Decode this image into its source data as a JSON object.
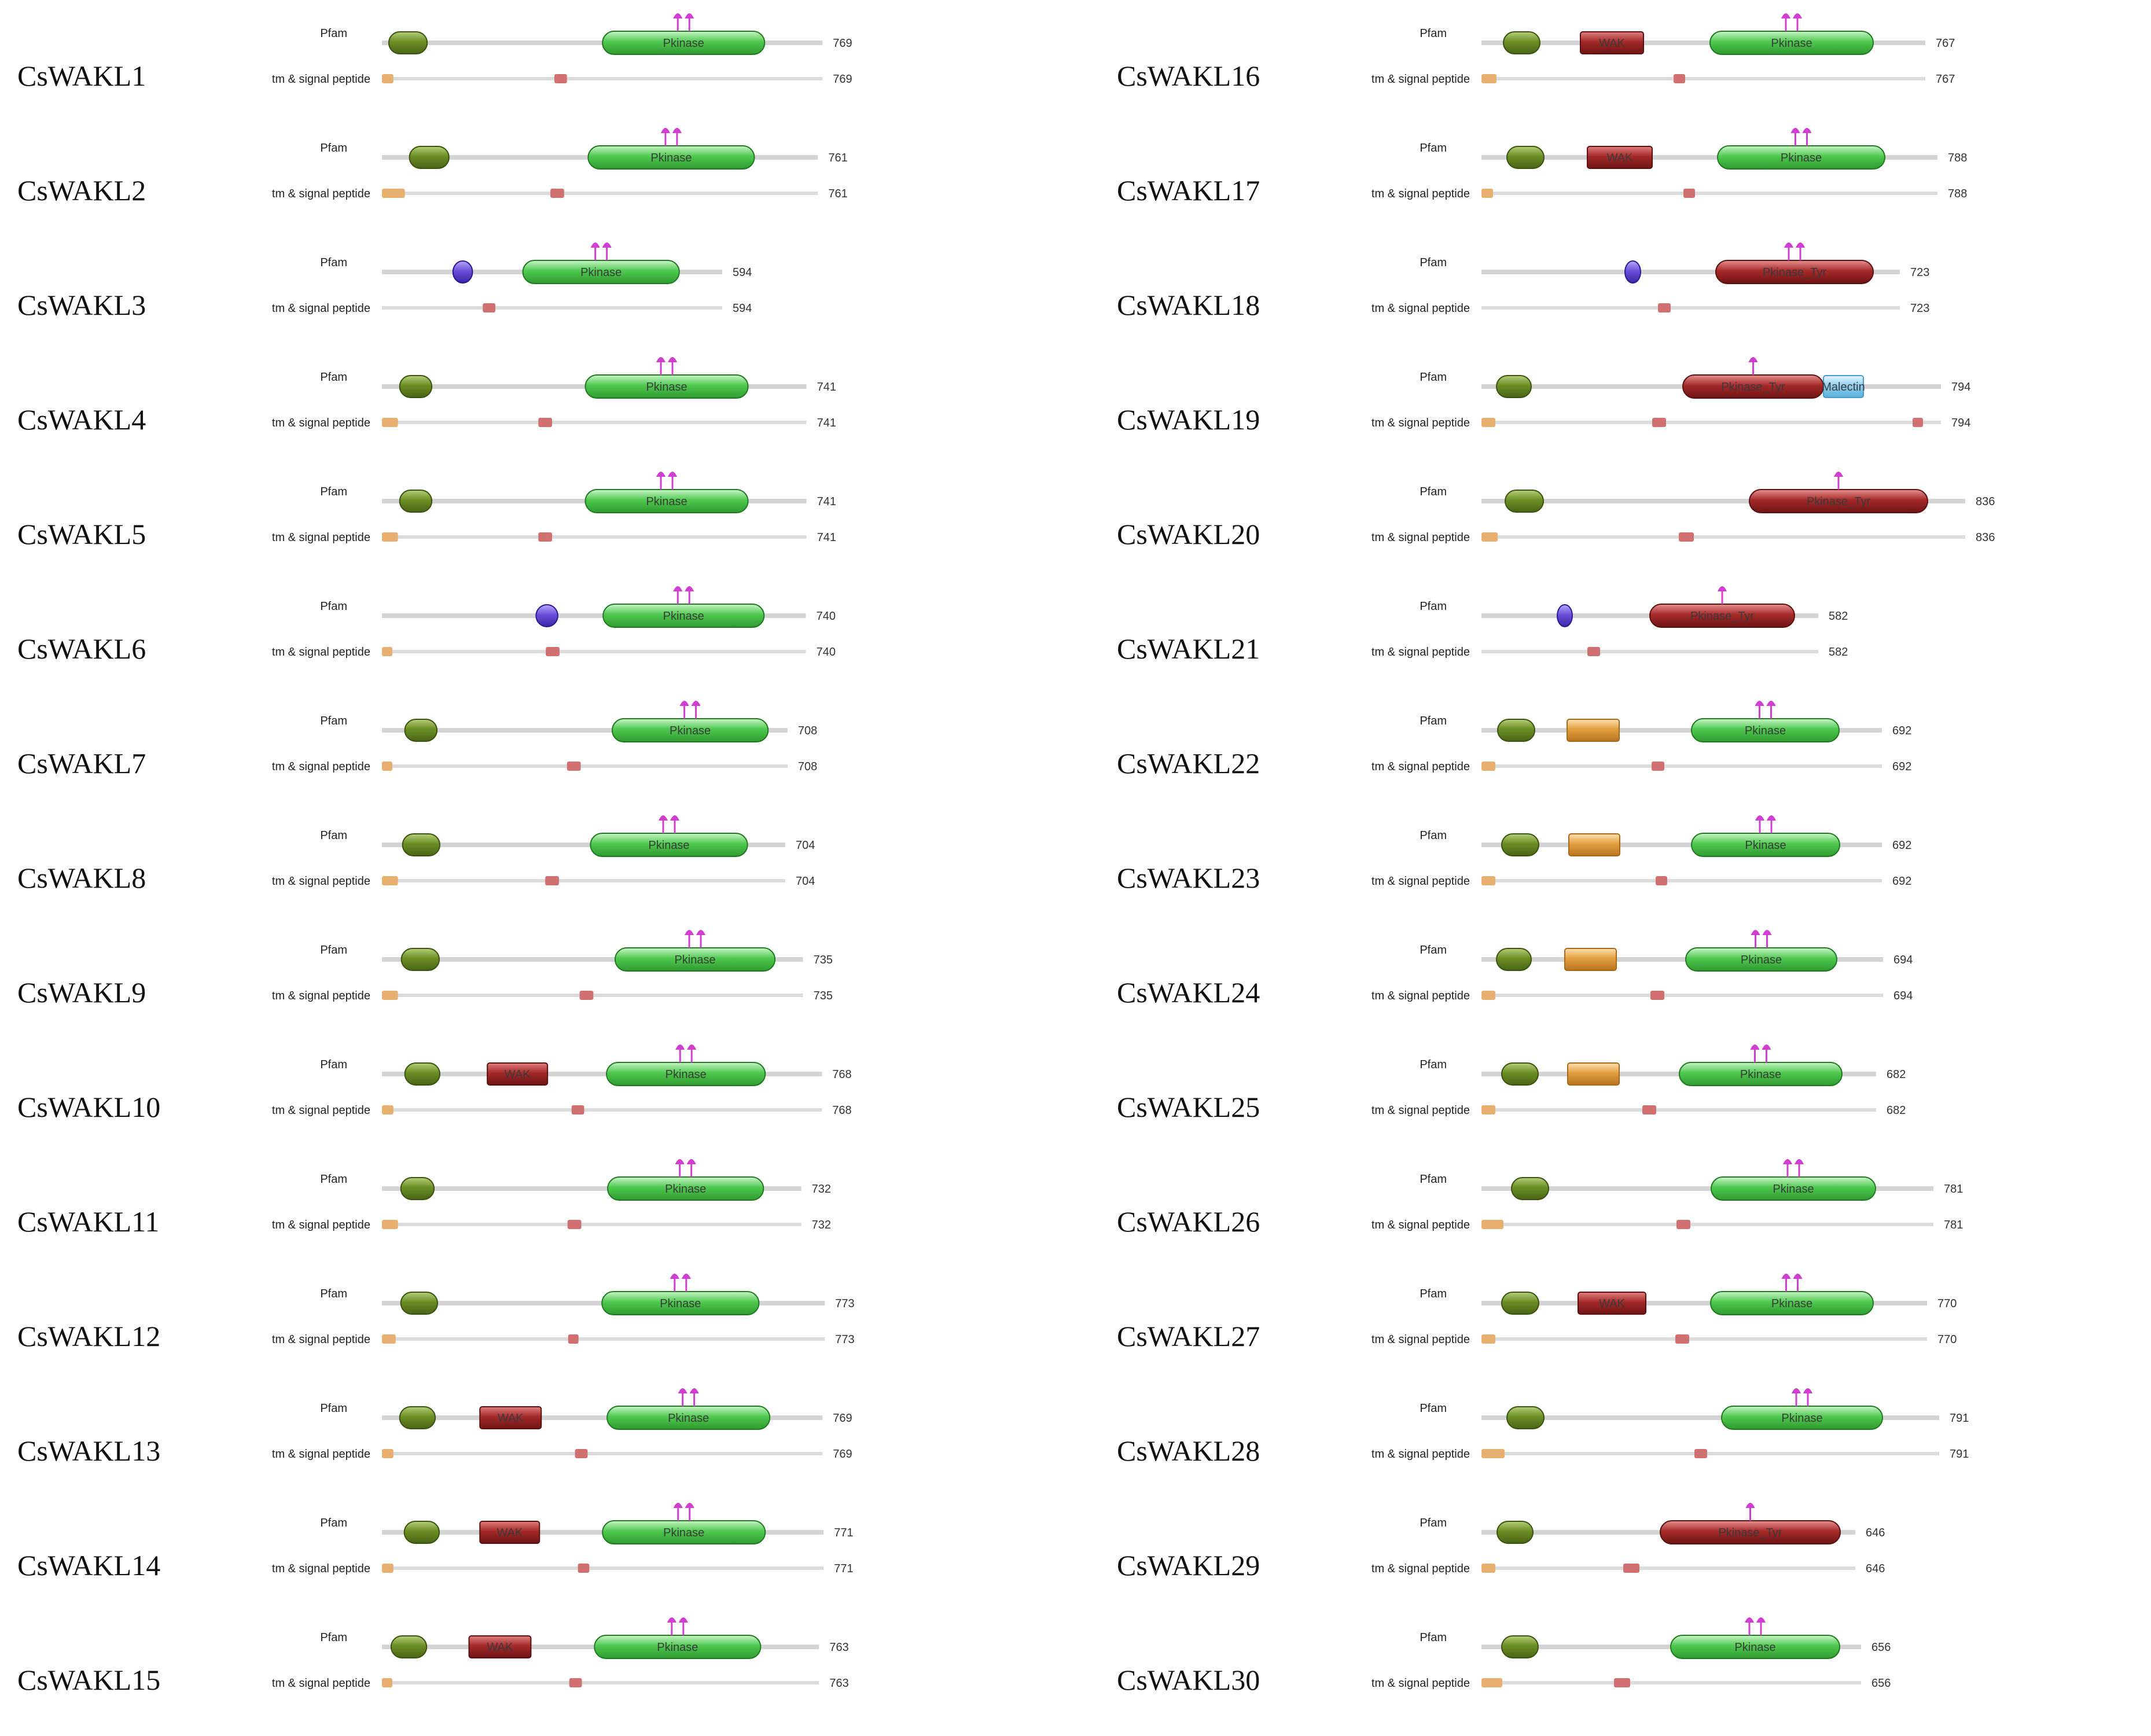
{
  "diagram": {
    "title": "",
    "track_labels": {
      "domains": "Pfam",
      "features": "tm & signal peptide"
    },
    "legend": {
      "malectin_color": "#6b8e23",
      "wak_color": "#a52a2a",
      "kinase_color": "#4fc94f",
      "pkinase_tyr_color": "#a52a2a",
      "purple_domain_color": "#6a4fd8",
      "orange_domain_color": "#e3a040",
      "blue_domain_color": "#8fd0ee",
      "signal_color": "#e8b070",
      "tm_color": "#d07070",
      "site_color": "#d040d0"
    },
    "proteins": [
      {
        "name": "CsWAKL1",
        "length": 769,
        "domains": [
          {
            "type": "green",
            "s": 12,
            "e": 79
          },
          {
            "type": "kinase",
            "s": 385,
            "e": 668,
            "label": "Pkinase",
            "sites": [
              1
            ]
          }
        ],
        "signal": [
          {
            "s": 0,
            "e": 20
          }
        ],
        "tm": [
          {
            "s": 301,
            "e": 323
          }
        ]
      },
      {
        "name": "CsWAKL2",
        "length": 761,
        "domains": [
          {
            "type": "green",
            "s": 48,
            "e": 117
          },
          {
            "type": "kinase",
            "s": 360,
            "e": 650,
            "label": "Pkinase",
            "sites": [
              1
            ]
          }
        ],
        "signal": [
          {
            "s": 0,
            "e": 40
          }
        ],
        "tm": [
          {
            "s": 294,
            "e": 318
          }
        ]
      },
      {
        "name": "CsWAKL3",
        "length": 594,
        "domains": [
          {
            "type": "purple",
            "s": 124,
            "e": 158
          },
          {
            "type": "kinase",
            "s": 246,
            "e": 519,
            "label": "Pkinase",
            "sites": [
              1
            ]
          }
        ],
        "signal": [],
        "tm": [
          {
            "s": 176,
            "e": 198
          }
        ]
      },
      {
        "name": "CsWAKL4",
        "length": 741,
        "domains": [
          {
            "type": "green",
            "s": 31,
            "e": 87
          },
          {
            "type": "kinase",
            "s": 355,
            "e": 639,
            "label": "Pkinase",
            "sites": [
              1
            ]
          }
        ],
        "signal": [
          {
            "s": 0,
            "e": 28
          }
        ],
        "tm": [
          {
            "s": 273,
            "e": 297
          }
        ]
      },
      {
        "name": "CsWAKL5",
        "length": 741,
        "domains": [
          {
            "type": "green",
            "s": 31,
            "e": 87
          },
          {
            "type": "kinase",
            "s": 355,
            "e": 639,
            "label": "Pkinase",
            "sites": [
              1
            ]
          }
        ],
        "signal": [
          {
            "s": 0,
            "e": 28
          }
        ],
        "tm": [
          {
            "s": 273,
            "e": 297
          }
        ]
      },
      {
        "name": "CsWAKL6",
        "length": 740,
        "domains": [
          {
            "type": "purple",
            "s": 269,
            "e": 307
          },
          {
            "type": "kinase",
            "s": 386,
            "e": 667,
            "label": "Pkinase",
            "sites": [
              1
            ]
          }
        ],
        "signal": [
          {
            "s": 0,
            "e": 16
          }
        ],
        "tm": [
          {
            "s": 286,
            "e": 310
          }
        ]
      },
      {
        "name": "CsWAKL7",
        "length": 708,
        "domains": [
          {
            "type": "green",
            "s": 40,
            "e": 96
          },
          {
            "type": "kinase",
            "s": 402,
            "e": 674,
            "label": "Pkinase",
            "sites": [
              1
            ]
          }
        ],
        "signal": [
          {
            "s": 0,
            "e": 16
          }
        ],
        "tm": [
          {
            "s": 323,
            "e": 347
          }
        ]
      },
      {
        "name": "CsWAKL8",
        "length": 704,
        "domains": [
          {
            "type": "green",
            "s": 36,
            "e": 101
          },
          {
            "type": "kinase",
            "s": 364,
            "e": 638,
            "label": "Pkinase",
            "sites": [
              1
            ]
          }
        ],
        "signal": [
          {
            "s": 0,
            "e": 28
          }
        ],
        "tm": [
          {
            "s": 285,
            "e": 309
          }
        ]
      },
      {
        "name": "CsWAKL9",
        "length": 735,
        "domains": [
          {
            "type": "green",
            "s": 34,
            "e": 100
          },
          {
            "type": "kinase",
            "s": 407,
            "e": 686,
            "label": "Pkinase",
            "sites": [
              1
            ]
          }
        ],
        "signal": [
          {
            "s": 0,
            "e": 28
          }
        ],
        "tm": [
          {
            "s": 345,
            "e": 369
          }
        ]
      },
      {
        "name": "CsWAKL10",
        "length": 768,
        "domains": [
          {
            "type": "green",
            "s": 40,
            "e": 101
          },
          {
            "type": "wak",
            "s": 184,
            "e": 289,
            "label": "WAK"
          },
          {
            "type": "kinase",
            "s": 392,
            "e": 669,
            "label": "Pkinase",
            "sites": [
              1
            ]
          }
        ],
        "signal": [
          {
            "s": 0,
            "e": 20
          }
        ],
        "tm": [
          {
            "s": 331,
            "e": 353
          }
        ]
      },
      {
        "name": "CsWAKL11",
        "length": 732,
        "domains": [
          {
            "type": "green",
            "s": 33,
            "e": 91
          },
          {
            "type": "kinase",
            "s": 394,
            "e": 666,
            "label": "Pkinase",
            "sites": [
              1
            ]
          }
        ],
        "signal": [
          {
            "s": 0,
            "e": 28
          }
        ],
        "tm": [
          {
            "s": 324,
            "e": 348
          }
        ]
      },
      {
        "name": "CsWAKL12",
        "length": 773,
        "domains": [
          {
            "type": "green",
            "s": 33,
            "e": 97
          },
          {
            "type": "kinase",
            "s": 384,
            "e": 658,
            "label": "Pkinase",
            "sites": [
              1
            ]
          }
        ],
        "signal": [
          {
            "s": 0,
            "e": 24
          }
        ],
        "tm": [
          {
            "s": 325,
            "e": 343
          }
        ]
      },
      {
        "name": "CsWAKL13",
        "length": 769,
        "domains": [
          {
            "type": "green",
            "s": 31,
            "e": 93
          },
          {
            "type": "wak",
            "s": 171,
            "e": 278,
            "label": "WAK"
          },
          {
            "type": "kinase",
            "s": 393,
            "e": 677,
            "label": "Pkinase",
            "sites": [
              1
            ]
          }
        ],
        "signal": [
          {
            "s": 0,
            "e": 20
          }
        ],
        "tm": [
          {
            "s": 337,
            "e": 359
          }
        ]
      },
      {
        "name": "CsWAKL14",
        "length": 771,
        "domains": [
          {
            "type": "green",
            "s": 39,
            "e": 100
          },
          {
            "type": "wak",
            "s": 171,
            "e": 275,
            "label": "WAK"
          },
          {
            "type": "kinase",
            "s": 385,
            "e": 669,
            "label": "Pkinase",
            "sites": [
              1
            ]
          }
        ],
        "signal": [
          {
            "s": 0,
            "e": 20
          }
        ],
        "tm": [
          {
            "s": 342,
            "e": 362
          }
        ]
      },
      {
        "name": "CsWAKL15",
        "length": 763,
        "domains": [
          {
            "type": "green",
            "s": 16,
            "e": 78
          },
          {
            "type": "wak",
            "s": 152,
            "e": 260,
            "label": "WAK"
          },
          {
            "type": "kinase",
            "s": 371,
            "e": 661,
            "label": "Pkinase",
            "sites": [
              1
            ]
          }
        ],
        "signal": [
          {
            "s": 0,
            "e": 16
          }
        ],
        "tm": [
          {
            "s": 327,
            "e": 349
          }
        ]
      },
      {
        "name": "CsWAKL16",
        "length": 767,
        "domains": [
          {
            "type": "green",
            "s": 38,
            "e": 101
          },
          {
            "type": "wak",
            "s": 171,
            "e": 280,
            "label": "WAK"
          },
          {
            "type": "kinase",
            "s": 395,
            "e": 677,
            "label": "Pkinase",
            "sites": [
              1
            ]
          }
        ],
        "signal": [
          {
            "s": 0,
            "e": 26
          }
        ],
        "tm": [
          {
            "s": 332,
            "e": 352
          }
        ]
      },
      {
        "name": "CsWAKL17",
        "length": 788,
        "domains": [
          {
            "type": "green",
            "s": 44,
            "e": 108
          },
          {
            "type": "wak",
            "s": 183,
            "e": 295,
            "label": "WAK"
          },
          {
            "type": "kinase",
            "s": 408,
            "e": 697,
            "label": "Pkinase",
            "sites": [
              1
            ]
          }
        ],
        "signal": [
          {
            "s": 0,
            "e": 20
          }
        ],
        "tm": [
          {
            "s": 349,
            "e": 369
          }
        ]
      },
      {
        "name": "CsWAKL18",
        "length": 723,
        "domains": [
          {
            "type": "purple",
            "s": 248,
            "e": 275
          },
          {
            "type": "tyr",
            "s": 405,
            "e": 677,
            "label": "Pkinase_Tyr",
            "sites": [
              1
            ]
          }
        ],
        "signal": [],
        "tm": [
          {
            "s": 305,
            "e": 327
          }
        ]
      },
      {
        "name": "CsWAKL19",
        "length": 794,
        "domains": [
          {
            "type": "green",
            "s": 26,
            "e": 86
          },
          {
            "type": "tyr",
            "s": 348,
            "e": 591,
            "label": "Pkinase_Tyr",
            "sites": [
              0.5
            ]
          },
          {
            "type": "blue",
            "s": 591,
            "e": 660,
            "label": "Malectin"
          }
        ],
        "signal": [
          {
            "s": 0,
            "e": 24
          }
        ],
        "tm": [
          {
            "s": 295,
            "e": 319
          },
          {
            "s": 745,
            "e": 763
          }
        ]
      },
      {
        "name": "CsWAKL20",
        "length": 836,
        "domains": [
          {
            "type": "green",
            "s": 41,
            "e": 107
          },
          {
            "type": "tyr",
            "s": 463,
            "e": 771,
            "label": "Pkinase_Tyr",
            "sites": [
              0.5
            ]
          }
        ],
        "signal": [
          {
            "s": 0,
            "e": 28
          }
        ],
        "tm": [
          {
            "s": 341,
            "e": 367
          }
        ]
      },
      {
        "name": "CsWAKL21",
        "length": 582,
        "domains": [
          {
            "type": "purple",
            "s": 131,
            "e": 157
          },
          {
            "type": "tyr",
            "s": 291,
            "e": 541,
            "label": "Pkinase_Tyr",
            "sites": [
              0.5
            ]
          }
        ],
        "signal": [],
        "tm": [
          {
            "s": 183,
            "e": 205
          }
        ]
      },
      {
        "name": "CsWAKL22",
        "length": 692,
        "domains": [
          {
            "type": "green",
            "s": 28,
            "e": 92
          },
          {
            "type": "orange",
            "s": 148,
            "e": 238
          },
          {
            "type": "kinase",
            "s": 363,
            "e": 618,
            "label": "Pkinase",
            "sites": [
              1
            ]
          }
        ],
        "signal": [
          {
            "s": 0,
            "e": 24
          }
        ],
        "tm": [
          {
            "s": 294,
            "e": 316
          }
        ]
      },
      {
        "name": "CsWAKL23",
        "length": 692,
        "domains": [
          {
            "type": "green",
            "s": 35,
            "e": 99
          },
          {
            "type": "orange",
            "s": 151,
            "e": 239
          },
          {
            "type": "kinase",
            "s": 363,
            "e": 619,
            "label": "Pkinase",
            "sites": [
              1
            ]
          }
        ],
        "signal": [
          {
            "s": 0,
            "e": 24
          }
        ],
        "tm": [
          {
            "s": 301,
            "e": 321
          }
        ]
      },
      {
        "name": "CsWAKL24",
        "length": 694,
        "domains": [
          {
            "type": "green",
            "s": 26,
            "e": 86
          },
          {
            "type": "orange",
            "s": 144,
            "e": 233
          },
          {
            "type": "kinase",
            "s": 353,
            "e": 614,
            "label": "Pkinase",
            "sites": [
              1
            ]
          }
        ],
        "signal": [
          {
            "s": 0,
            "e": 24
          }
        ],
        "tm": [
          {
            "s": 292,
            "e": 316
          }
        ]
      },
      {
        "name": "CsWAKL25",
        "length": 682,
        "domains": [
          {
            "type": "green",
            "s": 35,
            "e": 98
          },
          {
            "type": "orange",
            "s": 149,
            "e": 238
          },
          {
            "type": "kinase",
            "s": 342,
            "e": 623,
            "label": "Pkinase",
            "sites": [
              1
            ]
          }
        ],
        "signal": [
          {
            "s": 0,
            "e": 24
          }
        ],
        "tm": [
          {
            "s": 278,
            "e": 302
          }
        ]
      },
      {
        "name": "CsWAKL26",
        "length": 781,
        "domains": [
          {
            "type": "green",
            "s": 52,
            "e": 116
          },
          {
            "type": "kinase",
            "s": 397,
            "e": 681,
            "label": "Pkinase",
            "sites": [
              1
            ]
          }
        ],
        "signal": [
          {
            "s": 0,
            "e": 38
          }
        ],
        "tm": [
          {
            "s": 337,
            "e": 361
          }
        ]
      },
      {
        "name": "CsWAKL27",
        "length": 770,
        "domains": [
          {
            "type": "green",
            "s": 35,
            "e": 99
          },
          {
            "type": "wak",
            "s": 167,
            "e": 284,
            "label": "WAK"
          },
          {
            "type": "kinase",
            "s": 396,
            "e": 677,
            "label": "Pkinase",
            "sites": [
              1
            ]
          }
        ],
        "signal": [
          {
            "s": 0,
            "e": 24
          }
        ],
        "tm": [
          {
            "s": 335,
            "e": 359
          }
        ]
      },
      {
        "name": "CsWAKL28",
        "length": 791,
        "domains": [
          {
            "type": "green",
            "s": 44,
            "e": 108
          },
          {
            "type": "kinase",
            "s": 415,
            "e": 693,
            "label": "Pkinase",
            "sites": [
              1
            ]
          }
        ],
        "signal": [
          {
            "s": 0,
            "e": 40
          }
        ],
        "tm": [
          {
            "s": 368,
            "e": 390
          }
        ]
      },
      {
        "name": "CsWAKL29",
        "length": 646,
        "domains": [
          {
            "type": "green",
            "s": 27,
            "e": 89
          },
          {
            "type": "tyr",
            "s": 309,
            "e": 620,
            "label": "Pkinase_Tyr",
            "sites": [
              0.5
            ]
          }
        ],
        "signal": [
          {
            "s": 0,
            "e": 24
          }
        ],
        "tm": [
          {
            "s": 245,
            "e": 273
          }
        ]
      },
      {
        "name": "CsWAKL30",
        "length": 656,
        "domains": [
          {
            "type": "green",
            "s": 35,
            "e": 98
          },
          {
            "type": "kinase",
            "s": 327,
            "e": 619,
            "label": "Pkinase",
            "sites": [
              1
            ]
          }
        ],
        "signal": [
          {
            "s": 0,
            "e": 36
          }
        ],
        "tm": [
          {
            "s": 229,
            "e": 257
          }
        ]
      }
    ]
  }
}
